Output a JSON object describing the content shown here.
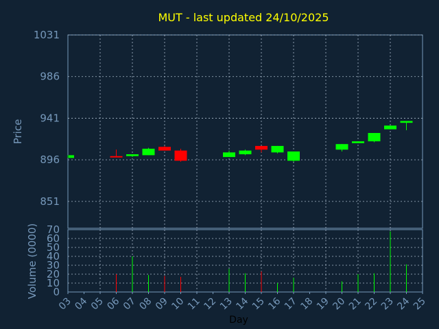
{
  "chart_data": {
    "type": "candlestick",
    "title": "MUT - last updated 24/10/2025",
    "xlabel": "Day",
    "price_axis": {
      "label": "Price",
      "ylim": [
        822,
        1031
      ],
      "ticks": [
        1031,
        986,
        941,
        896,
        851
      ]
    },
    "volume_axis": {
      "label": "Volume (0000)",
      "ylim": [
        0,
        70
      ],
      "ticks": [
        0,
        10,
        20,
        30,
        40,
        50,
        60,
        70
      ]
    },
    "x_ticks": [
      "03",
      "04",
      "05",
      "06",
      "07",
      "08",
      "09",
      "10",
      "11",
      "12",
      "13",
      "14",
      "15",
      "16",
      "17",
      "18",
      "19",
      "20",
      "21",
      "22",
      "23",
      "24",
      "25"
    ],
    "grid": true,
    "colors": {
      "background": "#112233",
      "axis": "#7799bb",
      "grid": "#aabbcc",
      "title": "#ffff00",
      "up": "#00ff00",
      "down": "#ff0000"
    },
    "candles": [
      {
        "day": "03",
        "open": 898,
        "high": 901,
        "low": 898,
        "close": 901,
        "volume": 0
      },
      {
        "day": "06",
        "open": 900,
        "high": 907,
        "low": 899,
        "close": 899,
        "volume": 20
      },
      {
        "day": "07",
        "open": 900,
        "high": 902,
        "low": 899,
        "close": 902,
        "volume": 40
      },
      {
        "day": "08",
        "open": 901,
        "high": 909,
        "low": 901,
        "close": 908,
        "volume": 19
      },
      {
        "day": "09",
        "open": 910,
        "high": 911,
        "low": 906,
        "close": 906,
        "volume": 18
      },
      {
        "day": "10",
        "open": 906,
        "high": 908,
        "low": 894,
        "close": 895,
        "volume": 17
      },
      {
        "day": "13",
        "open": 899,
        "high": 906,
        "low": 899,
        "close": 904,
        "volume": 26
      },
      {
        "day": "14",
        "open": 902,
        "high": 907,
        "low": 901,
        "close": 906,
        "volume": 21
      },
      {
        "day": "15",
        "open": 911,
        "high": 911,
        "low": 904,
        "close": 907,
        "volume": 23
      },
      {
        "day": "16",
        "open": 904,
        "high": 911,
        "low": 903,
        "close": 911,
        "volume": 10
      },
      {
        "day": "17",
        "open": 895,
        "high": 905,
        "low": 894,
        "close": 905,
        "volume": 16
      },
      {
        "day": "20",
        "open": 907,
        "high": 913,
        "low": 905,
        "close": 913,
        "volume": 12
      },
      {
        "day": "21",
        "open": 914,
        "high": 916,
        "low": 914,
        "close": 916,
        "volume": 20
      },
      {
        "day": "22",
        "open": 916,
        "high": 925,
        "low": 915,
        "close": 925,
        "volume": 21
      },
      {
        "day": "23",
        "open": 929,
        "high": 933,
        "low": 929,
        "close": 933,
        "volume": 68
      },
      {
        "day": "24",
        "open": 936,
        "high": 938,
        "low": 928,
        "close": 938,
        "volume": 31
      }
    ]
  }
}
